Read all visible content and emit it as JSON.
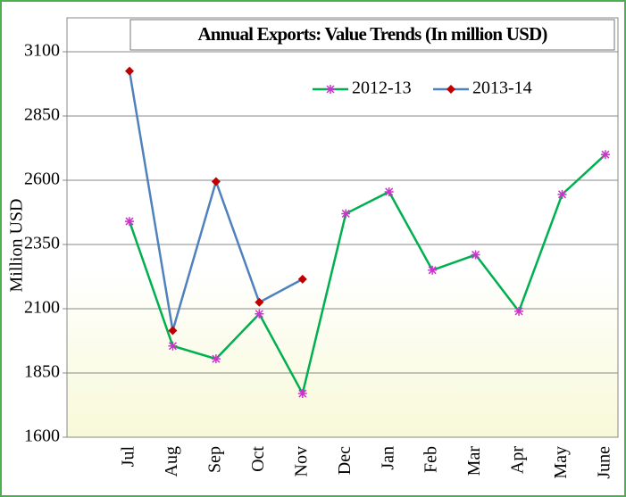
{
  "chart_data": {
    "type": "line",
    "title": "Annual Exports: Value Trends (In million USD)",
    "y_label": "Million USD",
    "categories": [
      "Jul",
      "Aug",
      "Sep",
      "Oct",
      "Nov",
      "Dec",
      "Jan",
      "Feb",
      "Mar",
      "Apr",
      "May",
      "June"
    ],
    "series": [
      {
        "name": "2012-13",
        "color": "#00b050",
        "marker": "star",
        "marker_color": "#cc33cc",
        "values": [
          2440,
          1955,
          1905,
          2080,
          1770,
          2470,
          2555,
          2250,
          2310,
          2090,
          2545,
          2700
        ]
      },
      {
        "name": "2013-14",
        "color": "#4f81bd",
        "marker": "diamond",
        "marker_color": "#c00000",
        "values": [
          3025,
          2015,
          2595,
          2125,
          2215,
          null,
          null,
          null,
          null,
          null,
          null,
          null
        ]
      }
    ],
    "ylim": [
      1600,
      3100
    ],
    "yticks": [
      1600,
      1850,
      2100,
      2350,
      2600,
      2850,
      3100
    ],
    "grid": true
  }
}
